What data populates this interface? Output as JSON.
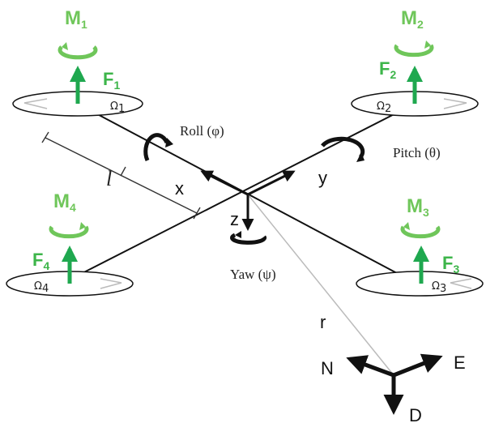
{
  "colors": {
    "force_green": "#1fa84f",
    "moment_green": "#6fc65a",
    "frame": "#111111",
    "position_line": "#bbbbbb"
  },
  "rotors": [
    {
      "moment": "M",
      "moment_sub": "1",
      "force": "F",
      "force_sub": "1",
      "omega": "Ω",
      "omega_sub": "1"
    },
    {
      "moment": "M",
      "moment_sub": "2",
      "force": "F",
      "force_sub": "2",
      "omega": "Ω",
      "omega_sub": "2"
    },
    {
      "moment": "M",
      "moment_sub": "3",
      "force": "F",
      "force_sub": "3",
      "omega": "Ω",
      "omega_sub": "3"
    },
    {
      "moment": "M",
      "moment_sub": "4",
      "force": "F",
      "force_sub": "4",
      "omega": "Ω",
      "omega_sub": "4"
    }
  ],
  "labels": {
    "roll": "Roll (φ)",
    "pitch": "Pitch (θ)",
    "yaw": "Yaw (ψ)",
    "x": "x",
    "y": "y",
    "z": "z",
    "arm_length": "l",
    "r": "r",
    "north": "N",
    "east": "E",
    "down": "D"
  },
  "icons": [
    "rotation-arrow-icon",
    "force-arrow-icon",
    "axis-arrow-icon"
  ]
}
